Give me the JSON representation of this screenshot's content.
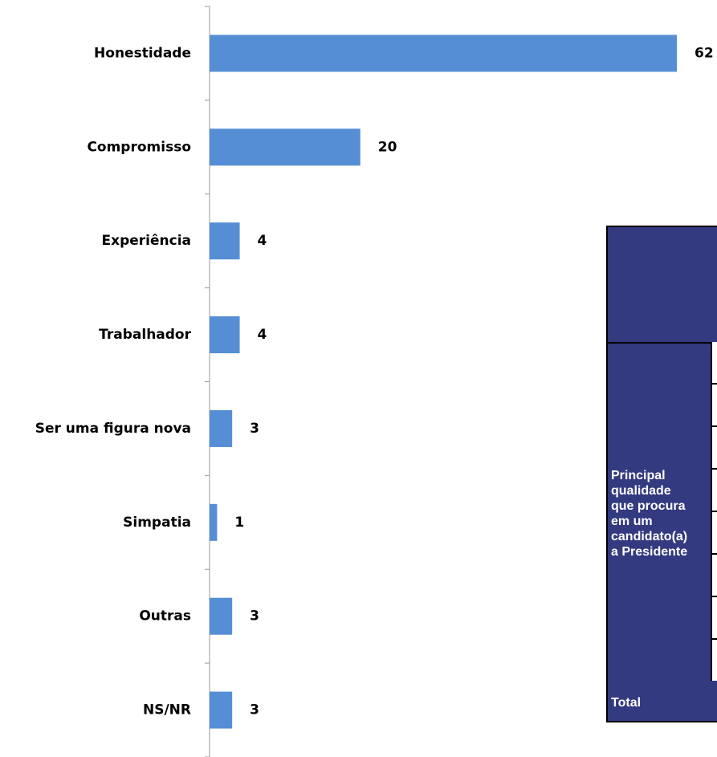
{
  "chart_data": {
    "type": "bar",
    "orientation": "horizontal",
    "categories": [
      "Honestidade",
      "Compromisso",
      "Experiência",
      "Trabalhador",
      "Ser uma figura nova",
      "Simpatia",
      "Outras",
      "NS/NR"
    ],
    "values": [
      62,
      20,
      4,
      4,
      3,
      1,
      3,
      3
    ],
    "color": "#558ed5",
    "xlim": [
      0,
      62
    ]
  },
  "table": {
    "row_header": [
      "Principal",
      "qualidade",
      "que procura",
      "em um",
      "candidato(a)",
      "a Presidente"
    ],
    "total": "Total"
  }
}
